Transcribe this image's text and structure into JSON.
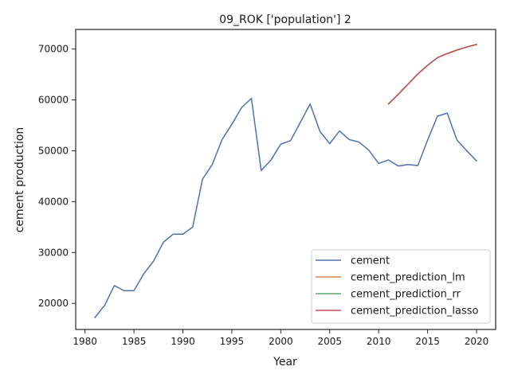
{
  "chart_data": {
    "type": "line",
    "title": "09_ROK ['population'] 2",
    "xlabel": "Year",
    "ylabel": "cement production",
    "xlim": [
      1979.05,
      2021.95
    ],
    "ylim": [
      14870,
      73850
    ],
    "xticks": [
      1980,
      1985,
      1990,
      1995,
      2000,
      2005,
      2010,
      2015,
      2020
    ],
    "yticks": [
      20000,
      30000,
      40000,
      50000,
      60000,
      70000
    ],
    "grid": false,
    "legend_position": "lower-right",
    "series": [
      {
        "name": "cement",
        "color": "#4c72b0",
        "x": [
          1981,
          1982,
          1983,
          1984,
          1985,
          1986,
          1987,
          1988,
          1989,
          1990,
          1991,
          1992,
          1993,
          1994,
          1995,
          1996,
          1997,
          1998,
          1999,
          2000,
          2001,
          2002,
          2003,
          2004,
          2005,
          2006,
          2007,
          2008,
          2009,
          2010,
          2011,
          2012,
          2013,
          2014,
          2015,
          2016,
          2017,
          2018,
          2019,
          2020
        ],
        "values": [
          17200,
          19600,
          23500,
          22500,
          22500,
          25800,
          28300,
          32000,
          33600,
          33600,
          35000,
          44400,
          47300,
          52200,
          55200,
          58500,
          60300,
          46100,
          48200,
          51300,
          52000,
          55600,
          59200,
          53800,
          51400,
          53900,
          52200,
          51700,
          50100,
          47500,
          48200,
          47000,
          47300,
          47100,
          52100,
          56800,
          57400,
          52100,
          50000,
          48000
        ]
      },
      {
        "name": "cement_prediction_lm",
        "color": "#dd8452",
        "x": [
          2011,
          2012,
          2013,
          2014,
          2015,
          2016,
          2017,
          2018,
          2019,
          2020
        ],
        "values": [
          59200,
          61100,
          63100,
          65100,
          66800,
          68300,
          69100,
          69800,
          70400,
          70900
        ]
      },
      {
        "name": "cement_prediction_rr",
        "color": "#55a868",
        "x": [
          2011,
          2012,
          2013,
          2014,
          2015,
          2016,
          2017,
          2018,
          2019,
          2020
        ],
        "values": [
          59200,
          61100,
          63100,
          65100,
          66800,
          68300,
          69100,
          69800,
          70400,
          70900
        ]
      },
      {
        "name": "cement_prediction_lasso",
        "color": "#c44e52",
        "x": [
          2011,
          2012,
          2013,
          2014,
          2015,
          2016,
          2017,
          2018,
          2019,
          2020
        ],
        "values": [
          59200,
          61100,
          63100,
          65100,
          66800,
          68300,
          69100,
          69800,
          70400,
          70900
        ]
      }
    ]
  }
}
